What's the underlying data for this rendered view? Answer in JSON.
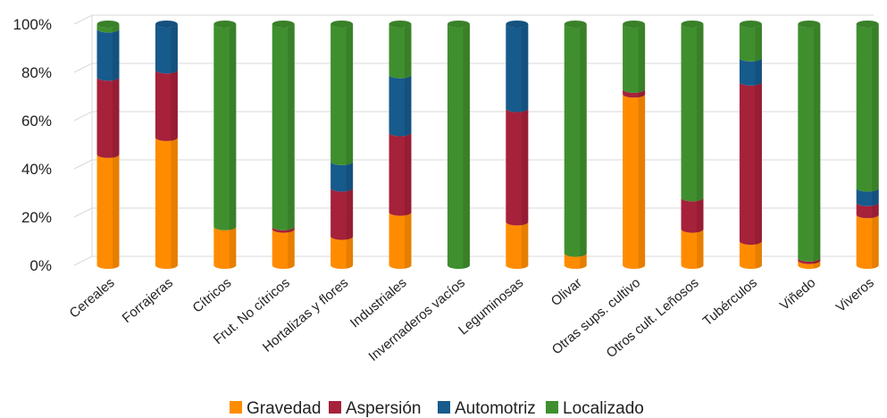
{
  "chart_data": {
    "type": "bar",
    "stacked": true,
    "three_d": true,
    "categories": [
      "Cereales",
      "Forrajeras",
      "Cítricos",
      "Frut. No cítricos",
      "Hortalizas y flores",
      "Industriales",
      "Invernaderos vacíos",
      "Leguminosas",
      "Olivar",
      "Otras sups. cultivo",
      "Otros cult. Leñosos",
      "Tubérculos",
      "Viñedo",
      "Viveros"
    ],
    "series": [
      {
        "name": "Gravedad",
        "color": "#ff8c00",
        "values": [
          46,
          53,
          16,
          15,
          12,
          22,
          0,
          18,
          5,
          71,
          15,
          10,
          2,
          21
        ]
      },
      {
        "name": "Aspersión",
        "color": "#a6213a",
        "values": [
          32,
          28,
          0,
          1,
          20,
          33,
          0,
          47,
          0,
          2,
          13,
          66,
          1,
          5
        ]
      },
      {
        "name": "Automotriz",
        "color": "#175a8c",
        "values": [
          20,
          19,
          0,
          0,
          11,
          24,
          0,
          35,
          0,
          0,
          0,
          10,
          0,
          6
        ]
      },
      {
        "name": "Localizado",
        "color": "#3f8f2e",
        "values": [
          2,
          0,
          84,
          84,
          57,
          21,
          100,
          0,
          95,
          27,
          72,
          14,
          97,
          68
        ]
      }
    ],
    "y_tick_labels": [
      "0%",
      "20%",
      "40%",
      "60%",
      "80%",
      "100%"
    ],
    "ylim": [
      0,
      100
    ],
    "grid": true,
    "legend_position": "bottom"
  }
}
